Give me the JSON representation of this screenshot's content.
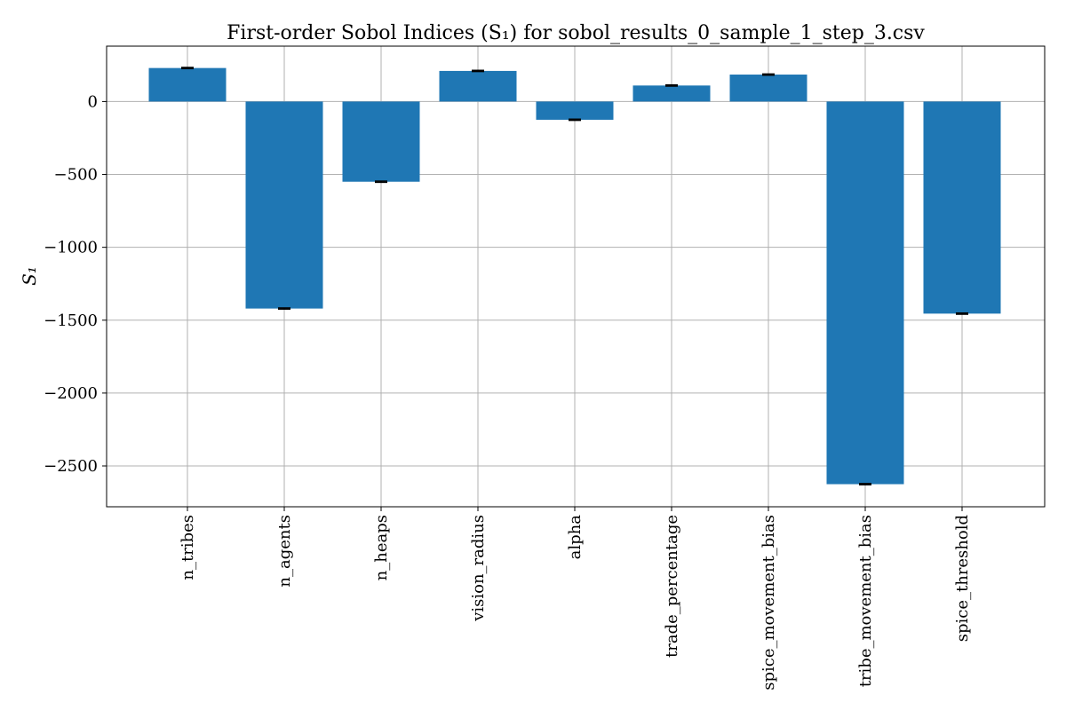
{
  "chart_data": {
    "type": "bar",
    "title": "First-order Sobol Indices (S₁) for sobol_results_0_sample_1_step_3.csv",
    "xlabel": "",
    "ylabel": "S₁",
    "categories": [
      "n_tribes",
      "n_agents",
      "n_heaps",
      "vision_radius",
      "alpha",
      "trade_percentage",
      "spice_movement_bias",
      "tribe_movement_bias",
      "spice_threshold"
    ],
    "values": [
      230,
      -1420,
      -550,
      210,
      -125,
      110,
      185,
      -2625,
      -1455
    ],
    "errors": [
      4,
      4,
      4,
      4,
      4,
      4,
      4,
      4,
      4
    ],
    "ylim": [
      -2780,
      380
    ],
    "yticks": [
      0,
      -500,
      -1000,
      -1500,
      -2000,
      -2500
    ],
    "ytick_labels": [
      "0",
      "−500",
      "−1000",
      "−1500",
      "−2000",
      "−2500"
    ],
    "grid": true,
    "bar_color": "#1f77b4"
  }
}
